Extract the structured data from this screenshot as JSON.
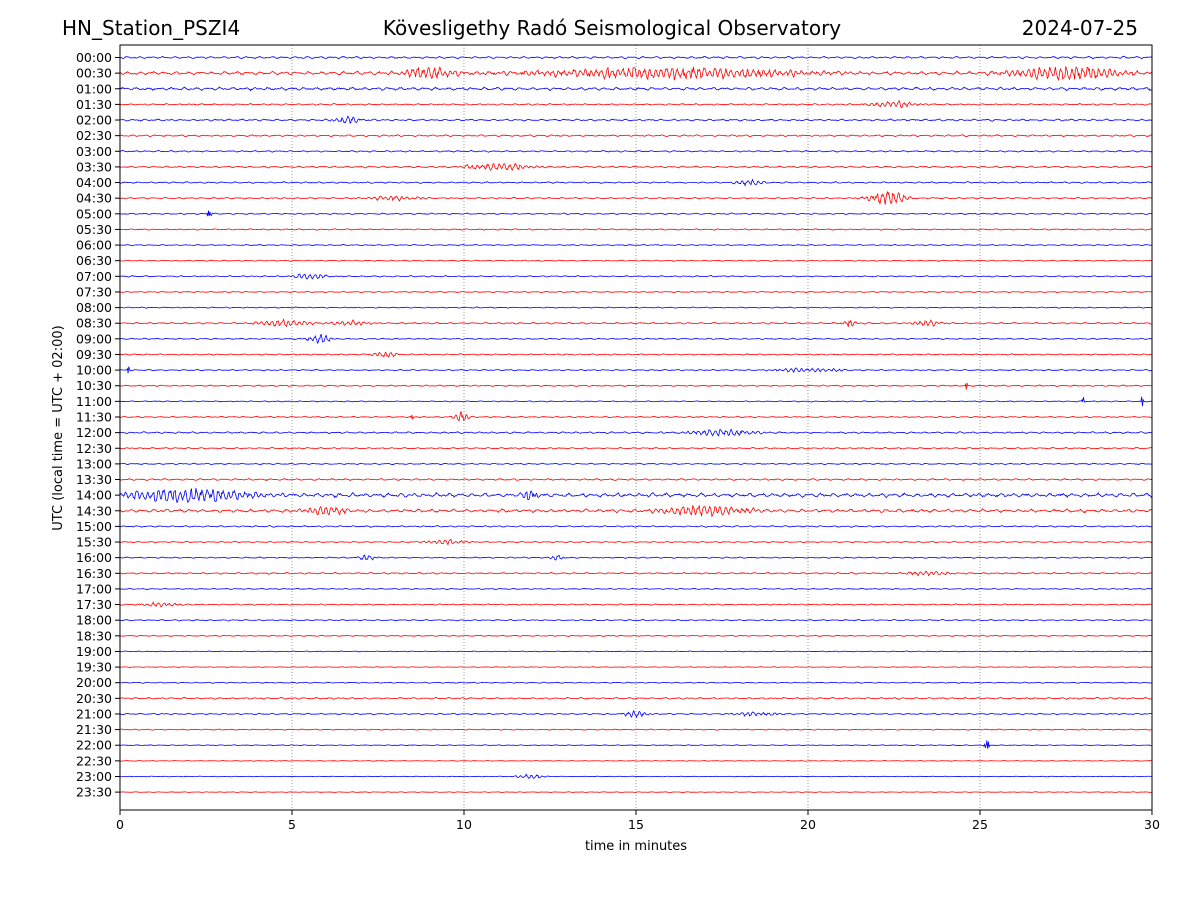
{
  "chart_data": {
    "type": "line",
    "title_left": "HN_Station_PSZI4",
    "title_center": "Kövesligethy Radó Seismological Observatory",
    "title_right": "2024-07-25",
    "xlabel": "time in minutes",
    "ylabel": "UTC (local time = UTC + 02:00)",
    "xlim": [
      0,
      30
    ],
    "x_ticks": [
      "0",
      "5",
      "10",
      "15",
      "20",
      "25",
      "30"
    ],
    "x_tick_values": [
      0,
      5,
      10,
      15,
      20,
      25,
      30
    ],
    "grid": "vertical dotted at each x tick",
    "colors": {
      "even_rows": "#0000ff",
      "odd_rows": "#ff0000",
      "axes": "#000000",
      "grid": "#808080"
    },
    "rows": [
      "00:00",
      "00:30",
      "01:00",
      "01:30",
      "02:00",
      "02:30",
      "03:00",
      "03:30",
      "04:00",
      "04:30",
      "05:00",
      "05:30",
      "06:00",
      "06:30",
      "07:00",
      "07:30",
      "08:00",
      "08:30",
      "09:00",
      "09:30",
      "10:00",
      "10:30",
      "11:00",
      "11:30",
      "12:00",
      "12:30",
      "13:00",
      "13:30",
      "14:00",
      "14:30",
      "15:00",
      "15:30",
      "16:00",
      "16:30",
      "17:00",
      "17:30",
      "18:00",
      "18:30",
      "19:00",
      "19:30",
      "20:00",
      "20:30",
      "21:00",
      "21:30",
      "22:00",
      "22:30",
      "23:00",
      "23:30"
    ],
    "row_noise": [
      1.0,
      1.6,
      1.4,
      0.7,
      0.9,
      0.8,
      0.7,
      0.8,
      0.7,
      0.7,
      0.6,
      0.6,
      0.5,
      0.5,
      0.6,
      0.5,
      0.5,
      0.7,
      0.6,
      0.6,
      0.6,
      0.6,
      0.5,
      0.6,
      0.8,
      0.7,
      0.6,
      0.8,
      1.8,
      1.5,
      0.7,
      0.5,
      0.6,
      0.7,
      0.5,
      0.6,
      0.6,
      0.5,
      0.4,
      0.3,
      0.5,
      0.8,
      0.6,
      0.5,
      0.4,
      0.3,
      0.3,
      0.3
    ],
    "events": [
      {
        "row": 1,
        "t": 9,
        "dur": 1.2,
        "amp": 5
      },
      {
        "row": 1,
        "t": 16,
        "dur": 6,
        "amp": 5
      },
      {
        "row": 1,
        "t": 27.5,
        "dur": 2.5,
        "amp": 6
      },
      {
        "row": 3,
        "t": 22.5,
        "dur": 1,
        "amp": 3
      },
      {
        "row": 4,
        "t": 6.6,
        "dur": 0.6,
        "amp": 3
      },
      {
        "row": 7,
        "t": 11,
        "dur": 1.5,
        "amp": 3
      },
      {
        "row": 8,
        "t": 18.3,
        "dur": 0.6,
        "amp": 3
      },
      {
        "row": 9,
        "t": 22.3,
        "dur": 0.8,
        "amp": 6
      },
      {
        "row": 9,
        "t": 8,
        "dur": 1.2,
        "amp": 2
      },
      {
        "row": 10,
        "t": 2.6,
        "dur": 0.1,
        "amp": 4
      },
      {
        "row": 14,
        "t": 5.5,
        "dur": 0.8,
        "amp": 2.5
      },
      {
        "row": 17,
        "t": 4.8,
        "dur": 1.2,
        "amp": 3
      },
      {
        "row": 17,
        "t": 6.7,
        "dur": 0.8,
        "amp": 2.5
      },
      {
        "row": 17,
        "t": 21.2,
        "dur": 0.3,
        "amp": 3
      },
      {
        "row": 17,
        "t": 23.5,
        "dur": 0.6,
        "amp": 3
      },
      {
        "row": 18,
        "t": 5.8,
        "dur": 0.5,
        "amp": 4
      },
      {
        "row": 19,
        "t": 7.7,
        "dur": 0.6,
        "amp": 2.5
      },
      {
        "row": 20,
        "t": 0.25,
        "dur": 0.05,
        "amp": 5
      },
      {
        "row": 20,
        "t": 20,
        "dur": 1.5,
        "amp": 2
      },
      {
        "row": 21,
        "t": 24.6,
        "dur": 0.05,
        "amp": 6
      },
      {
        "row": 22,
        "t": 28,
        "dur": 0.05,
        "amp": 7
      },
      {
        "row": 22,
        "t": 29.7,
        "dur": 0.05,
        "amp": 8
      },
      {
        "row": 23,
        "t": 9.9,
        "dur": 0.3,
        "amp": 5
      },
      {
        "row": 23,
        "t": 8.5,
        "dur": 0.05,
        "amp": 5
      },
      {
        "row": 24,
        "t": 17.5,
        "dur": 1.5,
        "amp": 3
      },
      {
        "row": 28,
        "t": 2,
        "dur": 3,
        "amp": 6
      },
      {
        "row": 28,
        "t": 11.9,
        "dur": 0.3,
        "amp": 5
      },
      {
        "row": 29,
        "t": 17,
        "dur": 2,
        "amp": 5
      },
      {
        "row": 29,
        "t": 6,
        "dur": 1,
        "amp": 4
      },
      {
        "row": 31,
        "t": 9.5,
        "dur": 1,
        "amp": 2
      },
      {
        "row": 32,
        "t": 7.2,
        "dur": 0.4,
        "amp": 2.5
      },
      {
        "row": 32,
        "t": 12.7,
        "dur": 0.3,
        "amp": 2.5
      },
      {
        "row": 33,
        "t": 23.5,
        "dur": 1,
        "amp": 2
      },
      {
        "row": 35,
        "t": 1.2,
        "dur": 0.8,
        "amp": 2
      },
      {
        "row": 42,
        "t": 15,
        "dur": 0.5,
        "amp": 3.5
      },
      {
        "row": 42,
        "t": 18.5,
        "dur": 1,
        "amp": 2
      },
      {
        "row": 44,
        "t": 25.2,
        "dur": 0.1,
        "amp": 6
      },
      {
        "row": 46,
        "t": 11.9,
        "dur": 0.6,
        "amp": 2
      }
    ]
  }
}
